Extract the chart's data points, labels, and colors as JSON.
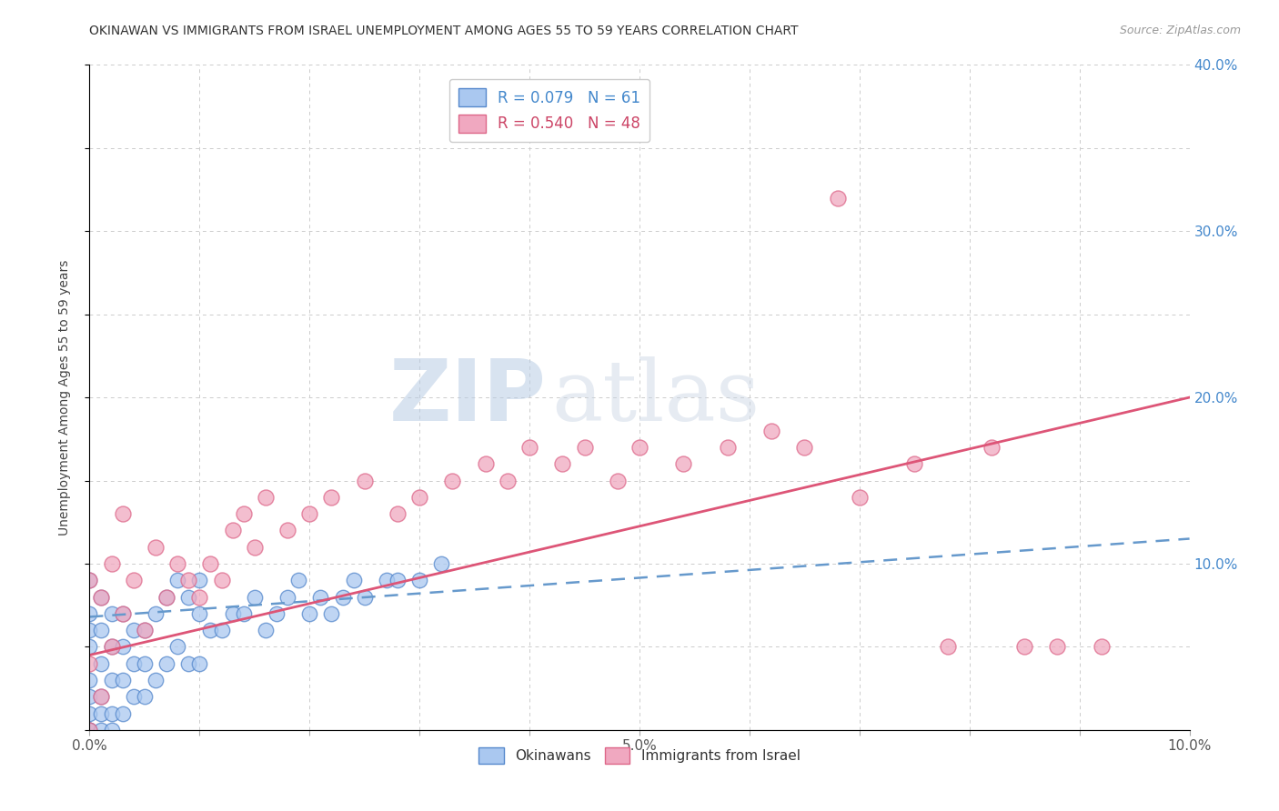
{
  "title": "OKINAWAN VS IMMIGRANTS FROM ISRAEL UNEMPLOYMENT AMONG AGES 55 TO 59 YEARS CORRELATION CHART",
  "source": "Source: ZipAtlas.com",
  "ylabel": "Unemployment Among Ages 55 to 59 years",
  "xlim": [
    0.0,
    0.1
  ],
  "ylim": [
    0.0,
    0.4
  ],
  "xticks": [
    0.0,
    0.01,
    0.02,
    0.03,
    0.04,
    0.05,
    0.06,
    0.07,
    0.08,
    0.09,
    0.1
  ],
  "yticks": [
    0.0,
    0.05,
    0.1,
    0.15,
    0.2,
    0.25,
    0.3,
    0.35,
    0.4
  ],
  "xtick_labels": [
    "0.0%",
    "",
    "",
    "",
    "",
    "5.0%",
    "",
    "",
    "",
    "",
    "10.0%"
  ],
  "ytick_labels_right": [
    "",
    "",
    "10.0%",
    "",
    "20.0%",
    "",
    "30.0%",
    "",
    "40.0%"
  ],
  "legend_r1": "R = 0.079",
  "legend_n1": "N = 61",
  "legend_r2": "R = 0.540",
  "legend_n2": "N = 48",
  "color_blue": "#aac8f0",
  "color_pink": "#f0a8c0",
  "edge_blue": "#5588cc",
  "edge_pink": "#dd6688",
  "line_blue_color": "#6699cc",
  "line_pink_color": "#dd5577",
  "watermark_zip_color": "#c8d8ee",
  "watermark_atlas_color": "#c0cce0",
  "background_color": "#ffffff",
  "grid_color": "#cccccc",
  "title_color": "#333333",
  "source_color": "#999999",
  "legend_text_blue": "#4488cc",
  "legend_text_pink": "#cc4466",
  "right_tick_color": "#4488cc",
  "ok_x": [
    0.0,
    0.0,
    0.0,
    0.0,
    0.0,
    0.0,
    0.0,
    0.0,
    0.0,
    0.0,
    0.001,
    0.001,
    0.001,
    0.001,
    0.001,
    0.001,
    0.002,
    0.002,
    0.002,
    0.002,
    0.002,
    0.003,
    0.003,
    0.003,
    0.003,
    0.004,
    0.004,
    0.004,
    0.005,
    0.005,
    0.005,
    0.006,
    0.006,
    0.007,
    0.007,
    0.008,
    0.008,
    0.009,
    0.009,
    0.01,
    0.01,
    0.01,
    0.011,
    0.012,
    0.013,
    0.014,
    0.015,
    0.016,
    0.017,
    0.018,
    0.019,
    0.02,
    0.021,
    0.022,
    0.023,
    0.024,
    0.025,
    0.027,
    0.028,
    0.03,
    0.032
  ],
  "ok_y": [
    0.0,
    0.0,
    0.0,
    0.01,
    0.02,
    0.03,
    0.05,
    0.06,
    0.07,
    0.09,
    0.0,
    0.01,
    0.02,
    0.04,
    0.06,
    0.08,
    0.0,
    0.01,
    0.03,
    0.05,
    0.07,
    0.01,
    0.03,
    0.05,
    0.07,
    0.02,
    0.04,
    0.06,
    0.02,
    0.04,
    0.06,
    0.03,
    0.07,
    0.04,
    0.08,
    0.05,
    0.09,
    0.04,
    0.08,
    0.04,
    0.07,
    0.09,
    0.06,
    0.06,
    0.07,
    0.07,
    0.08,
    0.06,
    0.07,
    0.08,
    0.09,
    0.07,
    0.08,
    0.07,
    0.08,
    0.09,
    0.08,
    0.09,
    0.09,
    0.09,
    0.1
  ],
  "isr_x": [
    0.0,
    0.0,
    0.0,
    0.001,
    0.001,
    0.002,
    0.002,
    0.003,
    0.003,
    0.004,
    0.005,
    0.006,
    0.007,
    0.008,
    0.009,
    0.01,
    0.011,
    0.012,
    0.013,
    0.014,
    0.015,
    0.016,
    0.018,
    0.02,
    0.022,
    0.025,
    0.028,
    0.03,
    0.033,
    0.036,
    0.038,
    0.04,
    0.043,
    0.045,
    0.048,
    0.05,
    0.054,
    0.058,
    0.062,
    0.065,
    0.068,
    0.07,
    0.075,
    0.078,
    0.082,
    0.085,
    0.088,
    0.092
  ],
  "isr_y": [
    0.0,
    0.04,
    0.09,
    0.02,
    0.08,
    0.05,
    0.1,
    0.07,
    0.13,
    0.09,
    0.06,
    0.11,
    0.08,
    0.1,
    0.09,
    0.08,
    0.1,
    0.09,
    0.12,
    0.13,
    0.11,
    0.14,
    0.12,
    0.13,
    0.14,
    0.15,
    0.13,
    0.14,
    0.15,
    0.16,
    0.15,
    0.17,
    0.16,
    0.17,
    0.15,
    0.17,
    0.16,
    0.17,
    0.18,
    0.17,
    0.32,
    0.14,
    0.16,
    0.05,
    0.17,
    0.05,
    0.05,
    0.05
  ],
  "blue_line_x0": 0.0,
  "blue_line_y0": 0.068,
  "blue_line_x1": 0.1,
  "blue_line_y1": 0.115,
  "pink_line_x0": 0.0,
  "pink_line_y0": 0.045,
  "pink_line_x1": 0.1,
  "pink_line_y1": 0.2
}
